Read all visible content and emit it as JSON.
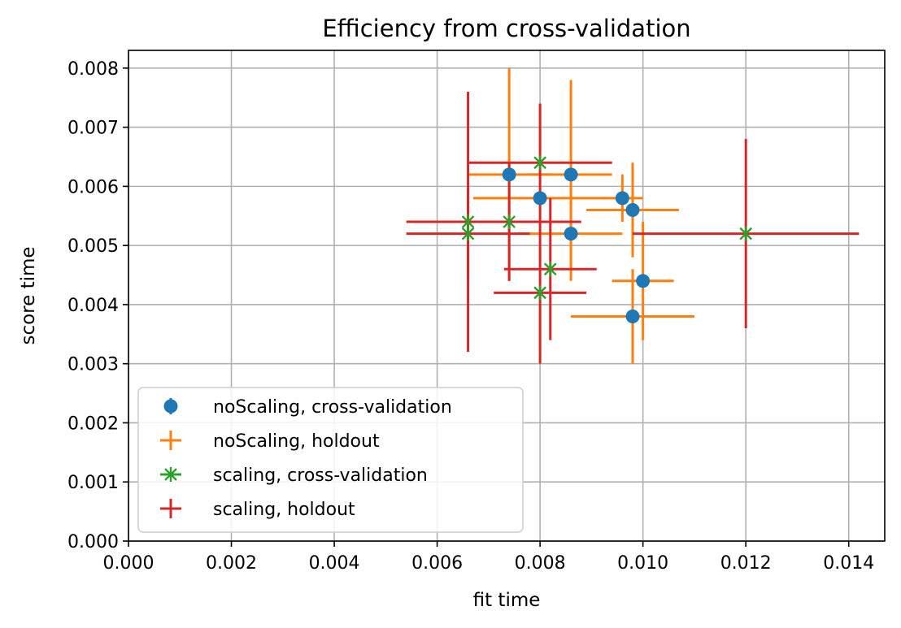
{
  "chart_data": {
    "type": "scatter",
    "title": "Efficiency from cross-validation",
    "xlabel": "fit time",
    "ylabel": "score time",
    "xlim": [
      0,
      0.0147
    ],
    "ylim": [
      0,
      0.0083
    ],
    "x_ticks": [
      "0.000",
      "0.002",
      "0.004",
      "0.006",
      "0.008",
      "0.010",
      "0.012",
      "0.014"
    ],
    "y_ticks": [
      "0.000",
      "0.001",
      "0.002",
      "0.003",
      "0.004",
      "0.005",
      "0.006",
      "0.007",
      "0.008"
    ],
    "grid": true,
    "legend_position": "lower-left",
    "series": [
      {
        "name": "noScaling, cross-validation",
        "color": "#1f77b4",
        "marker": "circle",
        "points": [
          {
            "x": 0.0074,
            "y": 0.0062
          },
          {
            "x": 0.008,
            "y": 0.0058
          },
          {
            "x": 0.0086,
            "y": 0.0062
          },
          {
            "x": 0.0086,
            "y": 0.0052
          },
          {
            "x": 0.0096,
            "y": 0.0058
          },
          {
            "x": 0.0098,
            "y": 0.0056
          },
          {
            "x": 0.01,
            "y": 0.0044
          },
          {
            "x": 0.0098,
            "y": 0.0038
          }
        ]
      },
      {
        "name": "noScaling, holdout",
        "color": "#ff7f0e",
        "marker": "errorbar",
        "points": [
          {
            "x": 0.0074,
            "y": 0.0062,
            "xerr": 0.0008,
            "yerr": 0.0018
          },
          {
            "x": 0.008,
            "y": 0.0058,
            "xerr": 0.0013,
            "yerr": 0.0
          },
          {
            "x": 0.0086,
            "y": 0.0062,
            "xerr": 0.0008,
            "yerr": 0.0016
          },
          {
            "x": 0.0086,
            "y": 0.0052,
            "xerr": 0.001,
            "yerr": 0.0008
          },
          {
            "x": 0.0096,
            "y": 0.0058,
            "xerr": 0.0004,
            "yerr": 0.0004
          },
          {
            "x": 0.0098,
            "y": 0.0056,
            "xerr": 0.0009,
            "yerr": 0.0008
          },
          {
            "x": 0.01,
            "y": 0.0044,
            "xerr": 0.0006,
            "yerr": 0.001
          },
          {
            "x": 0.0098,
            "y": 0.0038,
            "xerr": 0.0012,
            "yerr": 0.0008
          }
        ]
      },
      {
        "name": "scaling, cross-validation",
        "color": "#2ca02c",
        "marker": "x",
        "points": [
          {
            "x": 0.008,
            "y": 0.0064
          },
          {
            "x": 0.0066,
            "y": 0.0054
          },
          {
            "x": 0.0074,
            "y": 0.0054
          },
          {
            "x": 0.0066,
            "y": 0.0052
          },
          {
            "x": 0.0082,
            "y": 0.0046
          },
          {
            "x": 0.008,
            "y": 0.0042
          },
          {
            "x": 0.012,
            "y": 0.0052
          }
        ]
      },
      {
        "name": "scaling, holdout",
        "color": "#d62728",
        "marker": "errorbar",
        "points": [
          {
            "x": 0.008,
            "y": 0.0064,
            "xerr": 0.0014,
            "yerr": 0.001
          },
          {
            "x": 0.0066,
            "y": 0.0054,
            "xerr": 0.0012,
            "yerr": 0.0022
          },
          {
            "x": 0.0074,
            "y": 0.0054,
            "xerr": 0.0014,
            "yerr": 0.001
          },
          {
            "x": 0.0066,
            "y": 0.0052,
            "xerr": 0.0012,
            "yerr": 0.0008
          },
          {
            "x": 0.0082,
            "y": 0.0046,
            "xerr": 0.0009,
            "yerr": 0.0012
          },
          {
            "x": 0.008,
            "y": 0.0042,
            "xerr": 0.0009,
            "yerr": 0.0012
          },
          {
            "x": 0.012,
            "y": 0.0052,
            "xerr": 0.0022,
            "yerr": 0.0016
          }
        ]
      }
    ]
  }
}
